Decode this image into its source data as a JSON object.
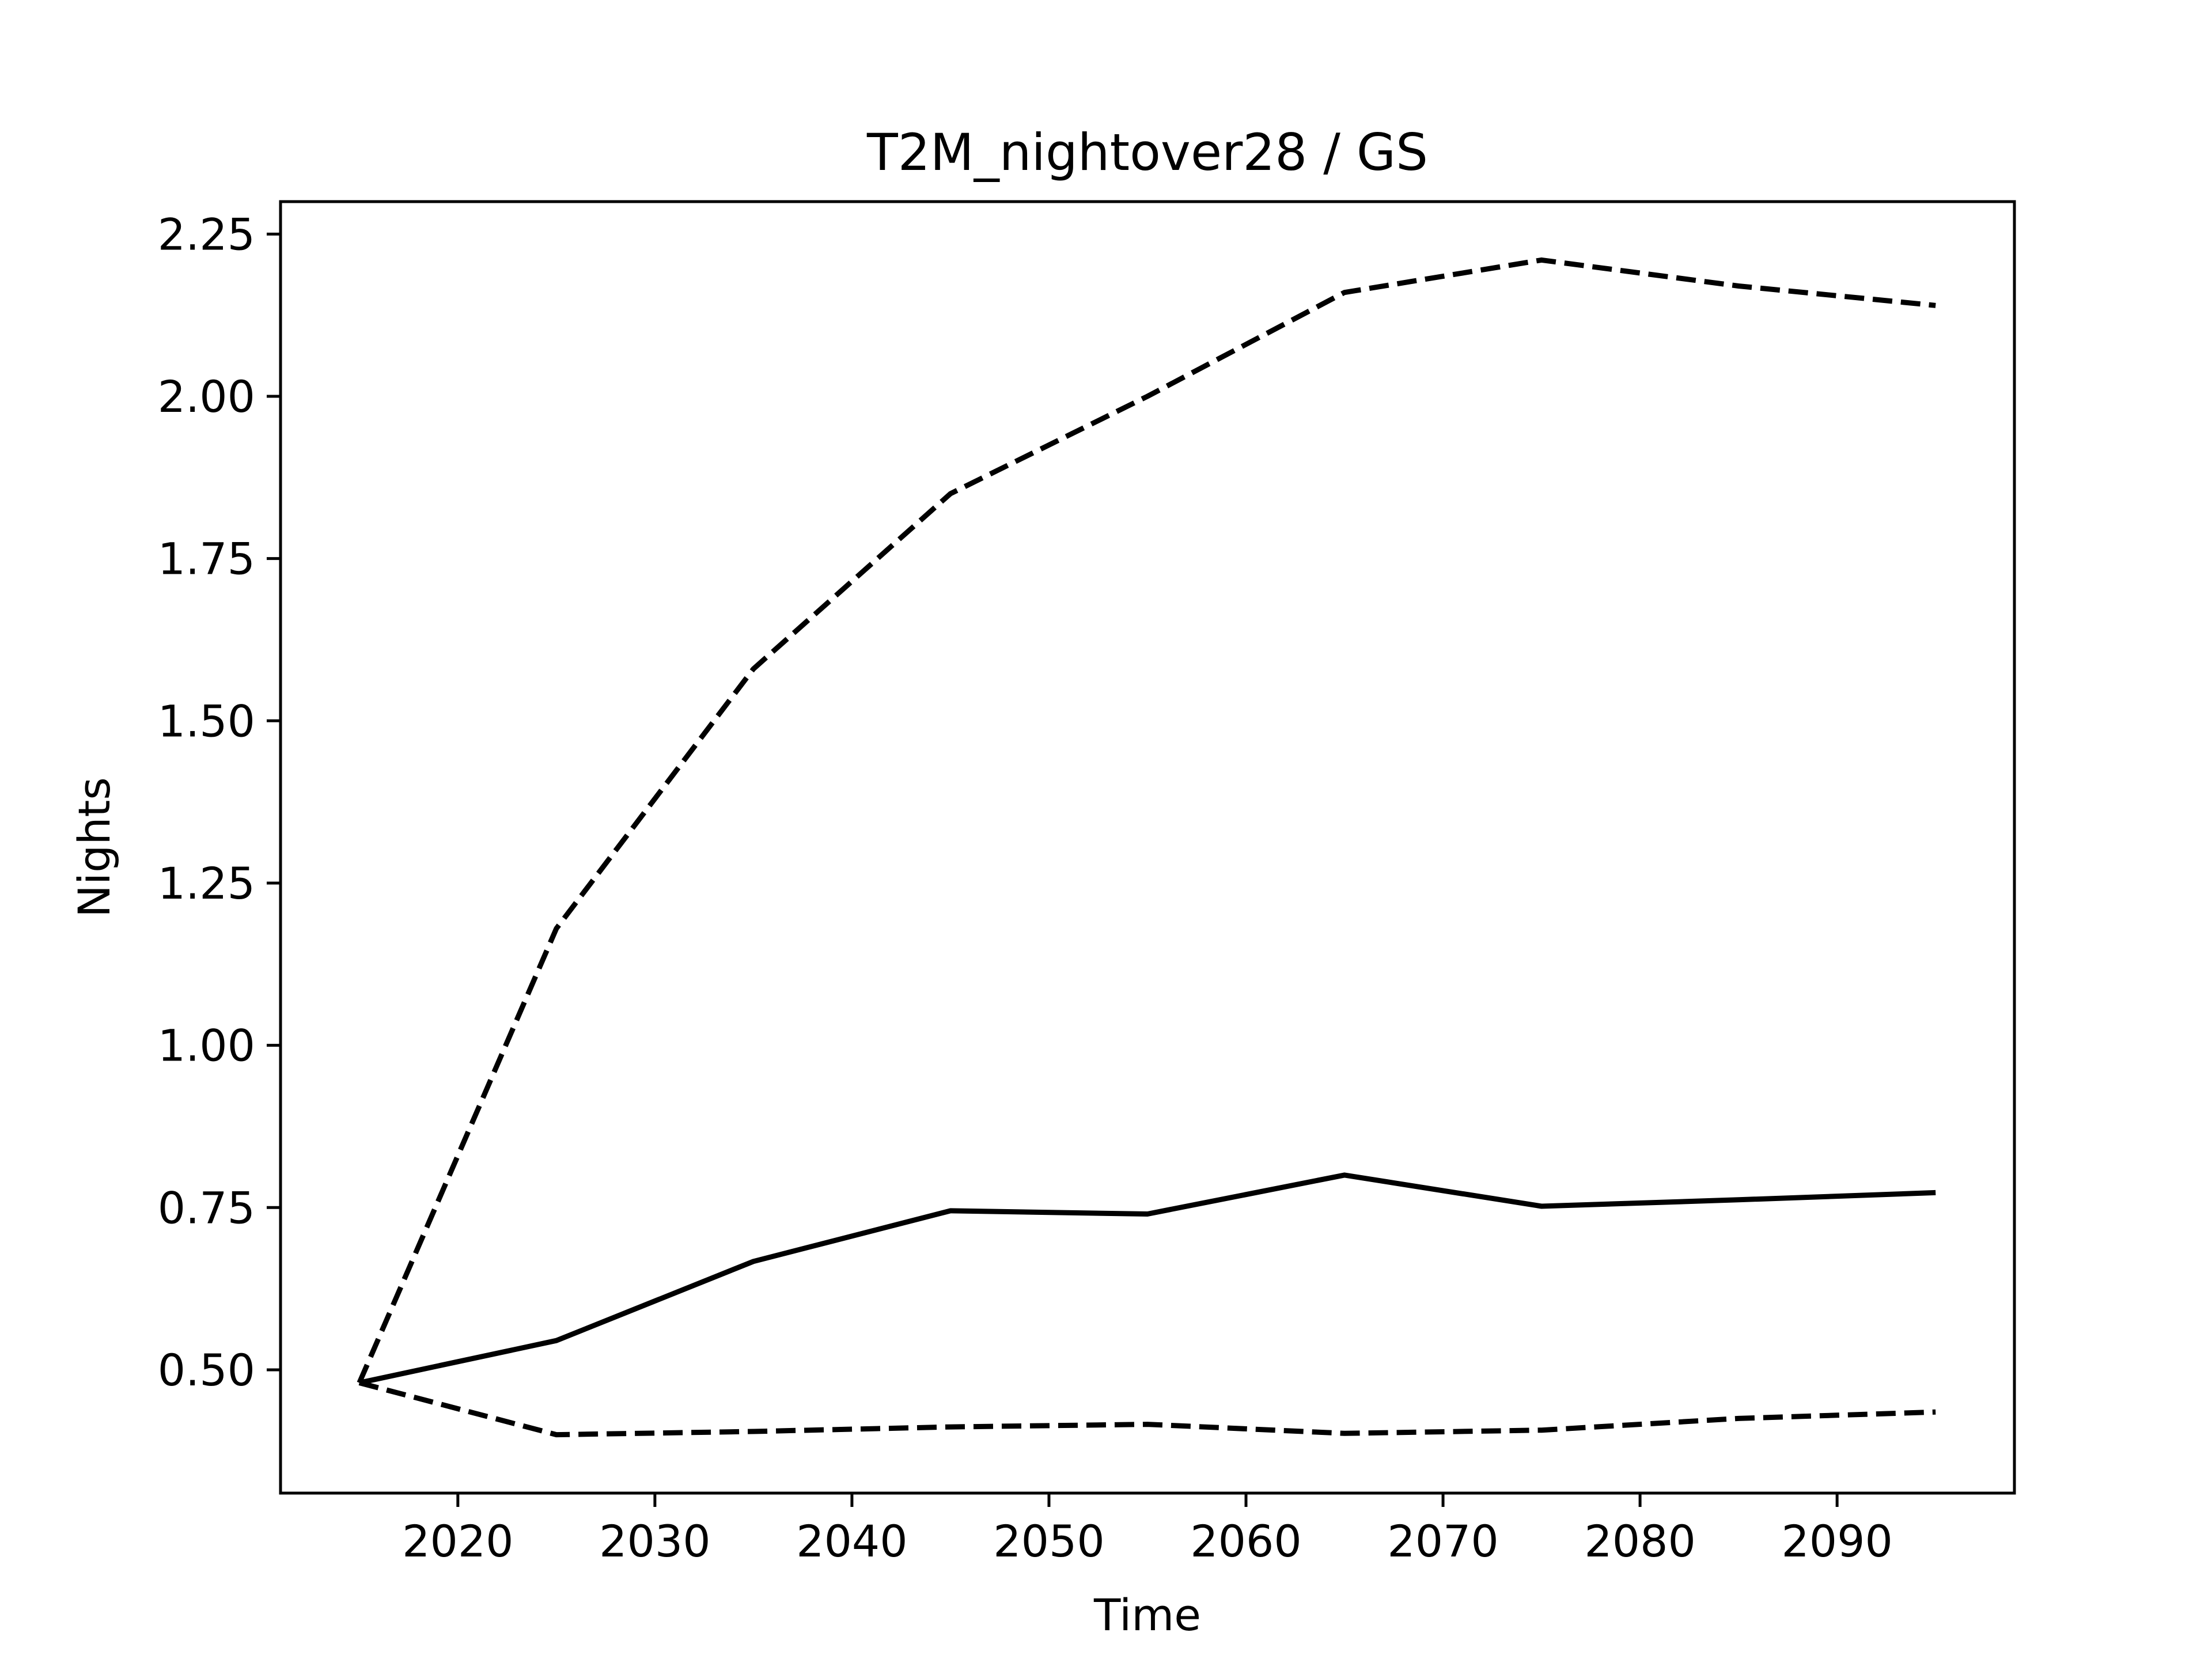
{
  "chart_data": {
    "type": "line",
    "title": "T2M_nightover28 / GS",
    "xlabel": "Time",
    "ylabel": "Nights",
    "xlim": [
      2011,
      2099
    ],
    "ylim": [
      0.31,
      2.3
    ],
    "xticks": [
      "2020",
      "2030",
      "2040",
      "2050",
      "2060",
      "2070",
      "2080",
      "2090"
    ],
    "yticks": [
      "0.50",
      "0.75",
      "1.00",
      "1.25",
      "1.50",
      "1.75",
      "2.00",
      "2.25"
    ],
    "grid": false,
    "x": [
      2015,
      2025,
      2035,
      2045,
      2055,
      2065,
      2075,
      2085,
      2095
    ],
    "series": [
      {
        "style": "solid",
        "color": "#000000",
        "values": [
          0.48,
          0.545,
          0.667,
          0.745,
          0.74,
          0.8,
          0.752,
          0.762,
          0.773
        ]
      },
      {
        "style": "dashed",
        "color": "#000000",
        "values": [
          0.48,
          1.18,
          1.58,
          1.85,
          2.0,
          2.16,
          2.21,
          2.17,
          2.14
        ]
      },
      {
        "style": "dashed",
        "color": "#000000",
        "values": [
          0.48,
          0.4,
          0.405,
          0.412,
          0.416,
          0.402,
          0.407,
          0.425,
          0.435
        ]
      }
    ]
  }
}
